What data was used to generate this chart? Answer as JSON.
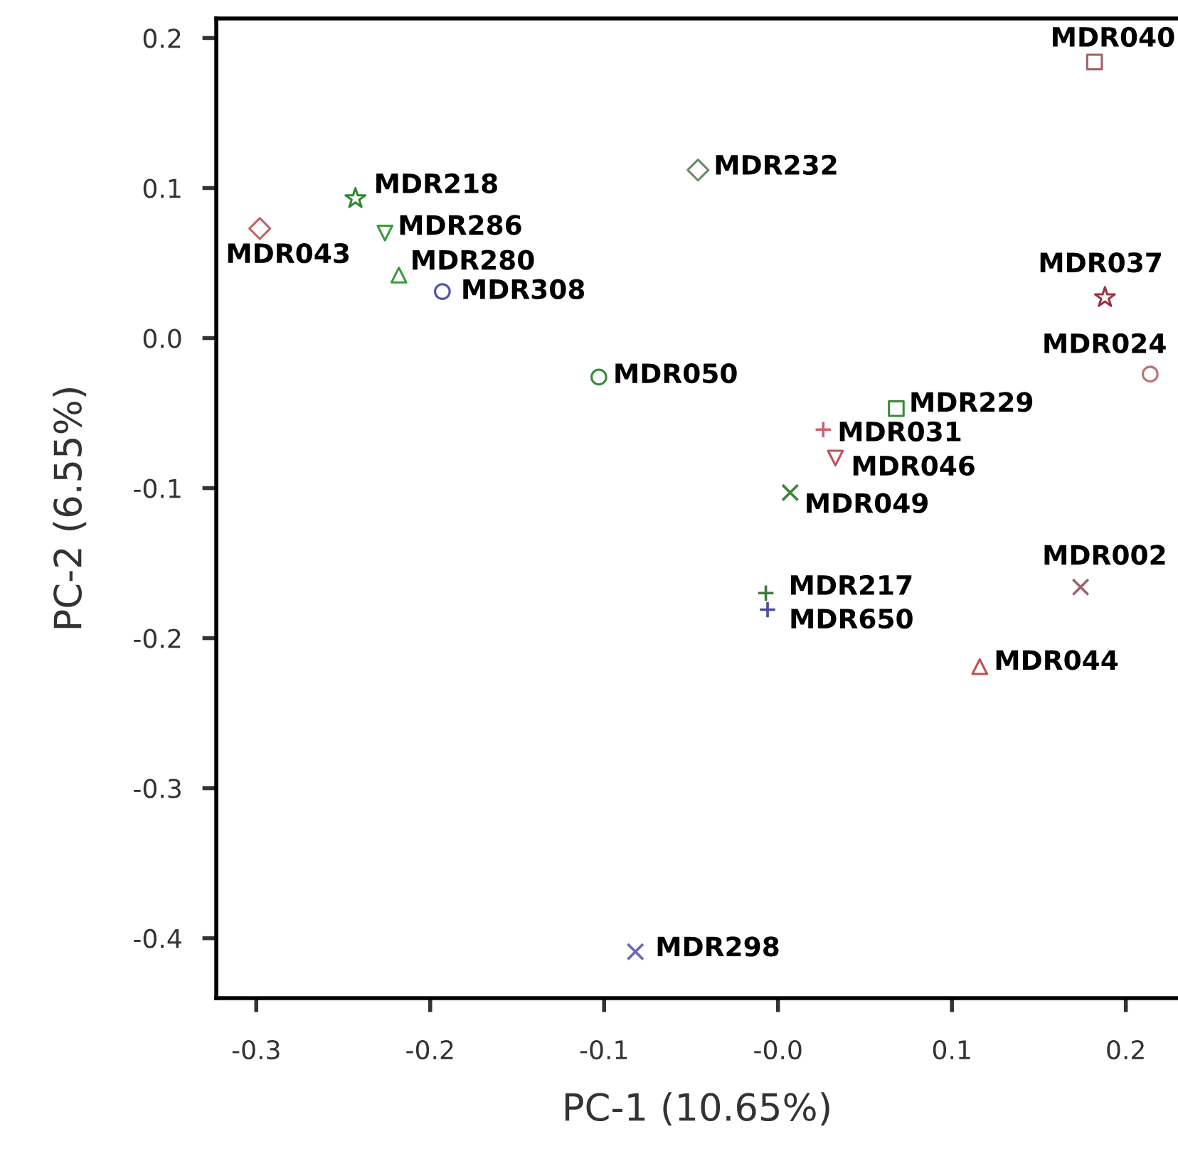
{
  "chart_data": {
    "type": "scatter",
    "xlabel": "PC-1 (10.65%)",
    "ylabel": "PC-2 (6.55%)",
    "xlim": [
      -0.323,
      0.23
    ],
    "ylim": [
      -0.44,
      0.213
    ],
    "xticks": [
      -0.3,
      -0.2,
      -0.1,
      {
        "value": 0,
        "label": "-0.0"
      },
      0.1,
      0.2
    ],
    "yticks": [
      0.2,
      0.1,
      {
        "value": 0,
        "label": "0.0"
      },
      -0.1,
      -0.2,
      -0.3,
      -0.4
    ],
    "grid": false,
    "legend": false,
    "series": [
      {
        "name": "MDR043",
        "x": [
          -0.298
        ],
        "values": [
          0.073
        ],
        "marker": "diamond",
        "color": "#c06060"
      },
      {
        "name": "MDR218",
        "x": [
          -0.243
        ],
        "values": [
          0.093
        ],
        "marker": "star",
        "color": "#2e8b2e"
      },
      {
        "name": "MDR286",
        "x": [
          -0.226
        ],
        "values": [
          0.07
        ],
        "marker": "triangle_down",
        "color": "#3a9a3a"
      },
      {
        "name": "MDR280",
        "x": [
          -0.218
        ],
        "values": [
          0.042
        ],
        "marker": "triangle",
        "color": "#3a9a3a"
      },
      {
        "name": "MDR308",
        "x": [
          -0.193
        ],
        "values": [
          0.031
        ],
        "marker": "circle",
        "color": "#5050b0"
      },
      {
        "name": "MDR050",
        "x": [
          -0.103
        ],
        "values": [
          -0.026
        ],
        "marker": "circle",
        "color": "#3a8a3a"
      },
      {
        "name": "MDR232",
        "x": [
          -0.046
        ],
        "values": [
          0.112
        ],
        "marker": "diamond",
        "color": "#6a8a6a"
      },
      {
        "name": "MDR040",
        "x": [
          0.182
        ],
        "values": [
          0.184
        ],
        "marker": "square",
        "color": "#a06060"
      },
      {
        "name": "MDR037",
        "x": [
          0.188
        ],
        "values": [
          0.027
        ],
        "marker": "star",
        "color": "#a03040"
      },
      {
        "name": "MDR024",
        "x": [
          0.214
        ],
        "values": [
          -0.024
        ],
        "marker": "circle",
        "color": "#c07070"
      },
      {
        "name": "MDR229",
        "x": [
          0.068
        ],
        "values": [
          -0.047
        ],
        "marker": "square",
        "color": "#3a8a3a"
      },
      {
        "name": "MDR031",
        "x": [
          0.026
        ],
        "values": [
          -0.061
        ],
        "marker": "plus",
        "color": "#d06070"
      },
      {
        "name": "MDR046",
        "x": [
          0.033
        ],
        "values": [
          -0.08
        ],
        "marker": "triangle_down",
        "color": "#c05060"
      },
      {
        "name": "MDR049",
        "x": [
          0.007
        ],
        "values": [
          -0.103
        ],
        "marker": "cross",
        "color": "#3a8a3a"
      },
      {
        "name": "MDR217",
        "x": [
          -0.007
        ],
        "values": [
          -0.17
        ],
        "marker": "plus",
        "color": "#3a7a3a"
      },
      {
        "name": "MDR650",
        "x": [
          -0.006
        ],
        "values": [
          -0.181
        ],
        "marker": "plus",
        "color": "#4a4aa0"
      },
      {
        "name": "MDR002",
        "x": [
          0.174
        ],
        "values": [
          -0.166
        ],
        "marker": "cross",
        "color": "#a06070"
      },
      {
        "name": "MDR044",
        "x": [
          0.116
        ],
        "values": [
          -0.219
        ],
        "marker": "triangle",
        "color": "#c05050"
      },
      {
        "name": "MDR298",
        "x": [
          -0.082
        ],
        "values": [
          -0.409
        ],
        "marker": "cross",
        "color": "#6a6ab0"
      }
    ]
  }
}
